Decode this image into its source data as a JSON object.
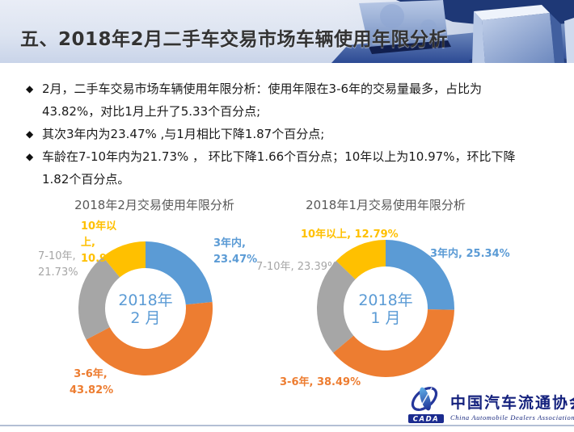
{
  "header": {
    "title": "五、2018年2月二手车交易市场车辆使用年限分析"
  },
  "bullets": [
    {
      "marker": "◆",
      "text": "2月，二手车交易市场车辆使用年限分析：使用年限在3-6年的交易量最多，占比为43.82%，对比1月上升了5.33个百分点;"
    },
    {
      "marker": "◆",
      "text": "其次3年内为23.47% ,与1月相比下降1.87个百分点;"
    },
    {
      "marker": "◆",
      "text": "车龄在7-10年内为21.73% ， 环比下降1.66个百分点；10年以上为10.97%，环比下降1.82个百分点。"
    }
  ],
  "chart_data": [
    {
      "type": "pie",
      "subtype": "donut",
      "title": "2018年2月交易使用年限分析",
      "center_label_line1": "2018年",
      "center_label_line2": "2 月",
      "categories": [
        "3年内",
        "3-6年",
        "7-10年",
        "10年以上"
      ],
      "values": [
        23.47,
        43.82,
        21.73,
        10.97
      ],
      "labels": [
        "3年内, 23.47%",
        "3-6年, 43.82%",
        "7-10年, 21.73%",
        "10年以上, 10.97%"
      ],
      "colors": [
        "#5B9BD5",
        "#ED7D31",
        "#A6A6A6",
        "#FFC000"
      ],
      "unit": "%",
      "start_angle_deg": 0,
      "direction": "clockwise",
      "legend_position": "outside-callout-labels"
    },
    {
      "type": "pie",
      "subtype": "donut",
      "title": "2018年1月交易使用年限分析",
      "center_label_line1": "2018年",
      "center_label_line2": "1 月",
      "categories": [
        "3年内",
        "3-6年",
        "7-10年",
        "10年以上"
      ],
      "values": [
        25.34,
        38.49,
        23.39,
        12.79
      ],
      "labels": [
        "3年内, 25.34%",
        "3-6年, 38.49%",
        "7-10年, 23.39%",
        "10年以上, 12.79%"
      ],
      "colors": [
        "#5B9BD5",
        "#ED7D31",
        "#A6A6A6",
        "#FFC000"
      ],
      "unit": "%",
      "start_angle_deg": 0,
      "direction": "clockwise",
      "legend_position": "outside-callout-labels"
    }
  ],
  "footer": {
    "logo_acronym": "CADA",
    "org_name_cn": "中国汽车流通协会",
    "org_name_en": "China Automobile Dealers Association"
  }
}
